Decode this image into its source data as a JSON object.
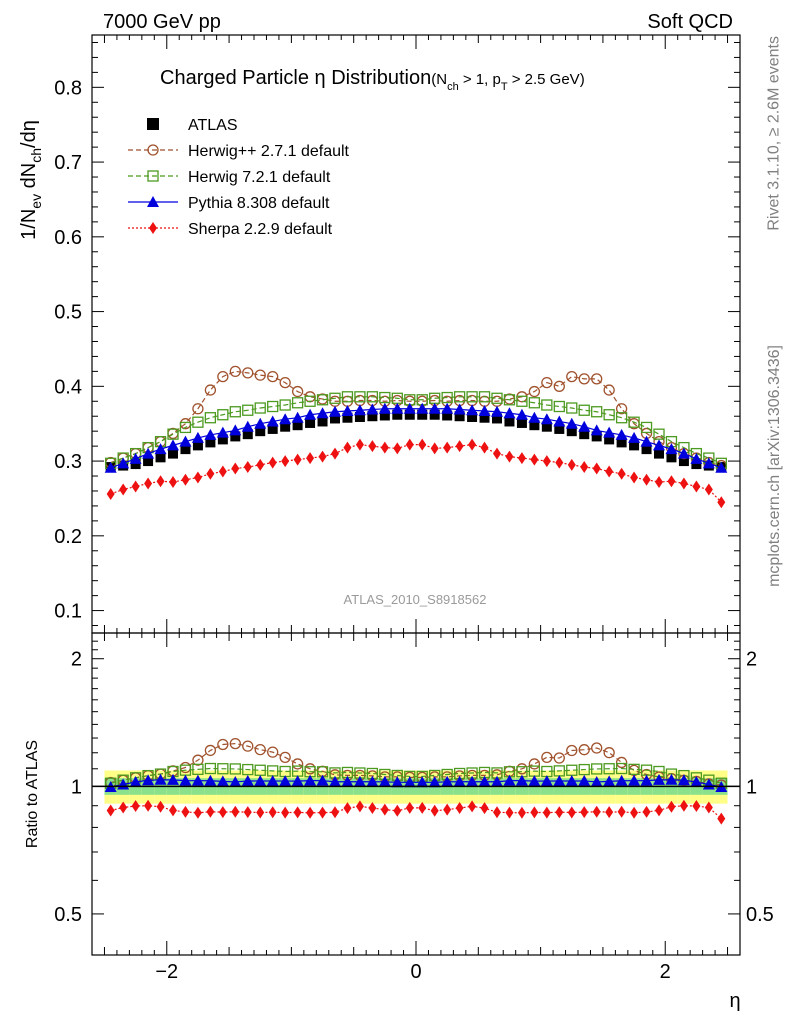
{
  "header": {
    "left": "7000 GeV pp",
    "right": "Soft QCD"
  },
  "side_labels": {
    "rivet": "Rivet 3.1.10, ≥ 2.6M events",
    "mcplots": "mcplots.cern.ch [arXiv:1306.3436]"
  },
  "chart_data": {
    "type": "scatter",
    "title": {
      "main": "Charged Particle η Distribution",
      "cut_a": "(N",
      "cut_a_sub": "ch",
      "cut_b": " > 1, p",
      "cut_b_sub": "T",
      "cut_c": " > 2.5 GeV)"
    },
    "analysis_tag": "ATLAS_2010_S8918562",
    "ylabel": {
      "a": "1/N",
      "a_sub": "ev",
      "b": " dN",
      "b_sub": "ch",
      "c": "/dη"
    },
    "ratio_ylabel": "Ratio to ATLAS",
    "xlabel": "η",
    "xlim": [
      -2.6,
      2.6
    ],
    "ylim": [
      0.07,
      0.87
    ],
    "ratio_ylim": [
      0.4,
      2.3
    ],
    "ratio_log": true,
    "x_ticks": [
      "−2",
      "0",
      "2"
    ],
    "y_ticks": [
      "0.1",
      "0.2",
      "0.3",
      "0.4",
      "0.5",
      "0.6",
      "0.7",
      "0.8"
    ],
    "ratio_ticks": [
      "0.5",
      "1",
      "2"
    ],
    "x": [
      -2.45,
      -2.35,
      -2.25,
      -2.15,
      -2.05,
      -1.95,
      -1.85,
      -1.75,
      -1.65,
      -1.55,
      -1.45,
      -1.35,
      -1.25,
      -1.15,
      -1.05,
      -0.95,
      -0.85,
      -0.75,
      -0.65,
      -0.55,
      -0.45,
      -0.35,
      -0.25,
      -0.15,
      -0.05,
      0.05,
      0.15,
      0.25,
      0.35,
      0.45,
      0.55,
      0.65,
      0.75,
      0.85,
      0.95,
      1.05,
      1.15,
      1.25,
      1.35,
      1.45,
      1.55,
      1.65,
      1.75,
      1.85,
      1.95,
      2.05,
      2.15,
      2.25,
      2.35,
      2.45
    ],
    "series": [
      {
        "name": "ATLAS",
        "color": "#000000",
        "marker": "square",
        "line": "none",
        "values": [
          0.292,
          0.294,
          0.296,
          0.3,
          0.305,
          0.31,
          0.316,
          0.321,
          0.325,
          0.329,
          0.333,
          0.336,
          0.34,
          0.343,
          0.346,
          0.348,
          0.351,
          0.353,
          0.357,
          0.358,
          0.359,
          0.36,
          0.361,
          0.362,
          0.362,
          0.362,
          0.362,
          0.361,
          0.36,
          0.359,
          0.358,
          0.357,
          0.353,
          0.351,
          0.348,
          0.346,
          0.343,
          0.34,
          0.336,
          0.333,
          0.329,
          0.325,
          0.321,
          0.316,
          0.31,
          0.305,
          0.3,
          0.296,
          0.294,
          0.292
        ]
      },
      {
        "name": "Herwig++ 2.7.1 default",
        "color": "#a0522d",
        "marker": "circle-open",
        "line": "dashed",
        "values": [
          0.298,
          0.304,
          0.31,
          0.318,
          0.326,
          0.337,
          0.35,
          0.37,
          0.395,
          0.413,
          0.42,
          0.418,
          0.415,
          0.413,
          0.405,
          0.393,
          0.386,
          0.383,
          0.38,
          0.38,
          0.381,
          0.381,
          0.38,
          0.381,
          0.38,
          0.38,
          0.381,
          0.38,
          0.381,
          0.381,
          0.38,
          0.38,
          0.383,
          0.386,
          0.393,
          0.405,
          0.4,
          0.413,
          0.41,
          0.41,
          0.395,
          0.37,
          0.35,
          0.337,
          0.326,
          0.318,
          0.31,
          0.304,
          0.298,
          0.294
        ]
      },
      {
        "name": "Herwig 7.2.1 default",
        "color": "#4c9a1f",
        "marker": "square-open",
        "line": "dashed",
        "values": [
          0.297,
          0.304,
          0.31,
          0.318,
          0.326,
          0.336,
          0.345,
          0.352,
          0.358,
          0.362,
          0.366,
          0.368,
          0.371,
          0.373,
          0.375,
          0.378,
          0.38,
          0.382,
          0.384,
          0.386,
          0.386,
          0.386,
          0.385,
          0.384,
          0.382,
          0.382,
          0.384,
          0.385,
          0.386,
          0.386,
          0.386,
          0.384,
          0.382,
          0.38,
          0.378,
          0.375,
          0.373,
          0.371,
          0.368,
          0.366,
          0.362,
          0.358,
          0.352,
          0.345,
          0.336,
          0.326,
          0.318,
          0.31,
          0.304,
          0.297
        ]
      },
      {
        "name": "Pythia 8.308 default",
        "color": "#0000dd",
        "marker": "triangle",
        "line": "solid",
        "values": [
          0.291,
          0.297,
          0.303,
          0.31,
          0.316,
          0.321,
          0.326,
          0.331,
          0.335,
          0.338,
          0.341,
          0.346,
          0.35,
          0.353,
          0.356,
          0.358,
          0.362,
          0.364,
          0.366,
          0.367,
          0.368,
          0.369,
          0.37,
          0.37,
          0.37,
          0.37,
          0.37,
          0.37,
          0.369,
          0.368,
          0.367,
          0.366,
          0.364,
          0.362,
          0.358,
          0.356,
          0.353,
          0.35,
          0.346,
          0.341,
          0.338,
          0.335,
          0.331,
          0.326,
          0.321,
          0.316,
          0.31,
          0.303,
          0.297,
          0.291
        ]
      },
      {
        "name": "Sherpa 2.2.9 default",
        "color": "#ee1111",
        "marker": "diamond",
        "line": "dotted",
        "values": [
          0.256,
          0.262,
          0.266,
          0.27,
          0.273,
          0.272,
          0.275,
          0.278,
          0.283,
          0.286,
          0.29,
          0.292,
          0.295,
          0.298,
          0.3,
          0.302,
          0.304,
          0.306,
          0.31,
          0.318,
          0.322,
          0.32,
          0.318,
          0.317,
          0.322,
          0.322,
          0.317,
          0.318,
          0.32,
          0.322,
          0.318,
          0.31,
          0.306,
          0.304,
          0.302,
          0.3,
          0.298,
          0.295,
          0.292,
          0.29,
          0.286,
          0.283,
          0.278,
          0.275,
          0.272,
          0.273,
          0.27,
          0.266,
          0.262,
          0.245
        ]
      }
    ],
    "ratio_band": {
      "green_color": "#8be08b",
      "yellow_color": "#ffff88",
      "green": 0.045,
      "yellow": 0.09
    }
  }
}
